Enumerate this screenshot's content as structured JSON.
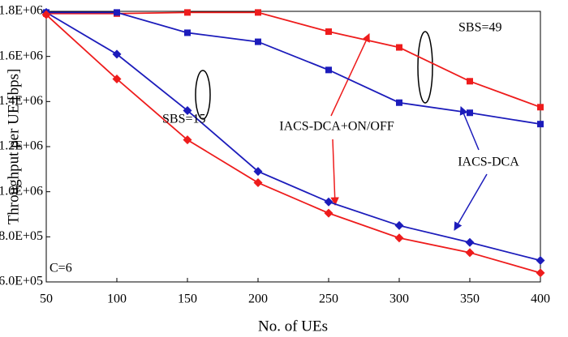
{
  "chart_data": {
    "type": "line",
    "xlabel": "No. of UEs",
    "ylabel": "Throughput per UE [bps]",
    "x": [
      50,
      100,
      150,
      200,
      250,
      300,
      350,
      400
    ],
    "series": [
      {
        "color": "#ee1c1c",
        "marker": "square",
        "values": [
          1790000,
          1790000,
          1795000,
          1795000,
          1710000,
          1640000,
          1490000,
          1375000
        ]
      },
      {
        "color": "#1c1cbb",
        "marker": "square",
        "values": [
          1795000,
          1795000,
          1705000,
          1665000,
          1540000,
          1395000,
          1350000,
          1300000
        ]
      },
      {
        "color": "#1c1cbb",
        "marker": "diamond",
        "values": [
          1795000,
          1610000,
          1360000,
          1090000,
          955000,
          850000,
          775000,
          695000
        ]
      },
      {
        "color": "#ee1c1c",
        "marker": "diamond",
        "values": [
          1785000,
          1500000,
          1230000,
          1040000,
          905000,
          795000,
          730000,
          640000
        ]
      }
    ],
    "xlim": [
      50,
      400
    ],
    "xticks": [
      50,
      100,
      150,
      200,
      250,
      300,
      350,
      400
    ],
    "ylim": [
      600000,
      1800000
    ],
    "yticks": [
      {
        "value": 600000,
        "label": "6.0E+05"
      },
      {
        "value": 800000,
        "label": "8.0E+05"
      },
      {
        "value": 1000000,
        "label": "1.0E+06"
      },
      {
        "value": 1200000,
        "label": "1.2E+06"
      },
      {
        "value": 1400000,
        "label": "1.4E+06"
      },
      {
        "value": 1600000,
        "label": "1.6E+06"
      },
      {
        "value": 1800000,
        "label": "1.8E+06"
      }
    ],
    "annotations": [
      "SBS=49",
      "SBS=15",
      "IACS-DCA+ON/OFF",
      "IACS-DCA",
      "C=6"
    ]
  }
}
